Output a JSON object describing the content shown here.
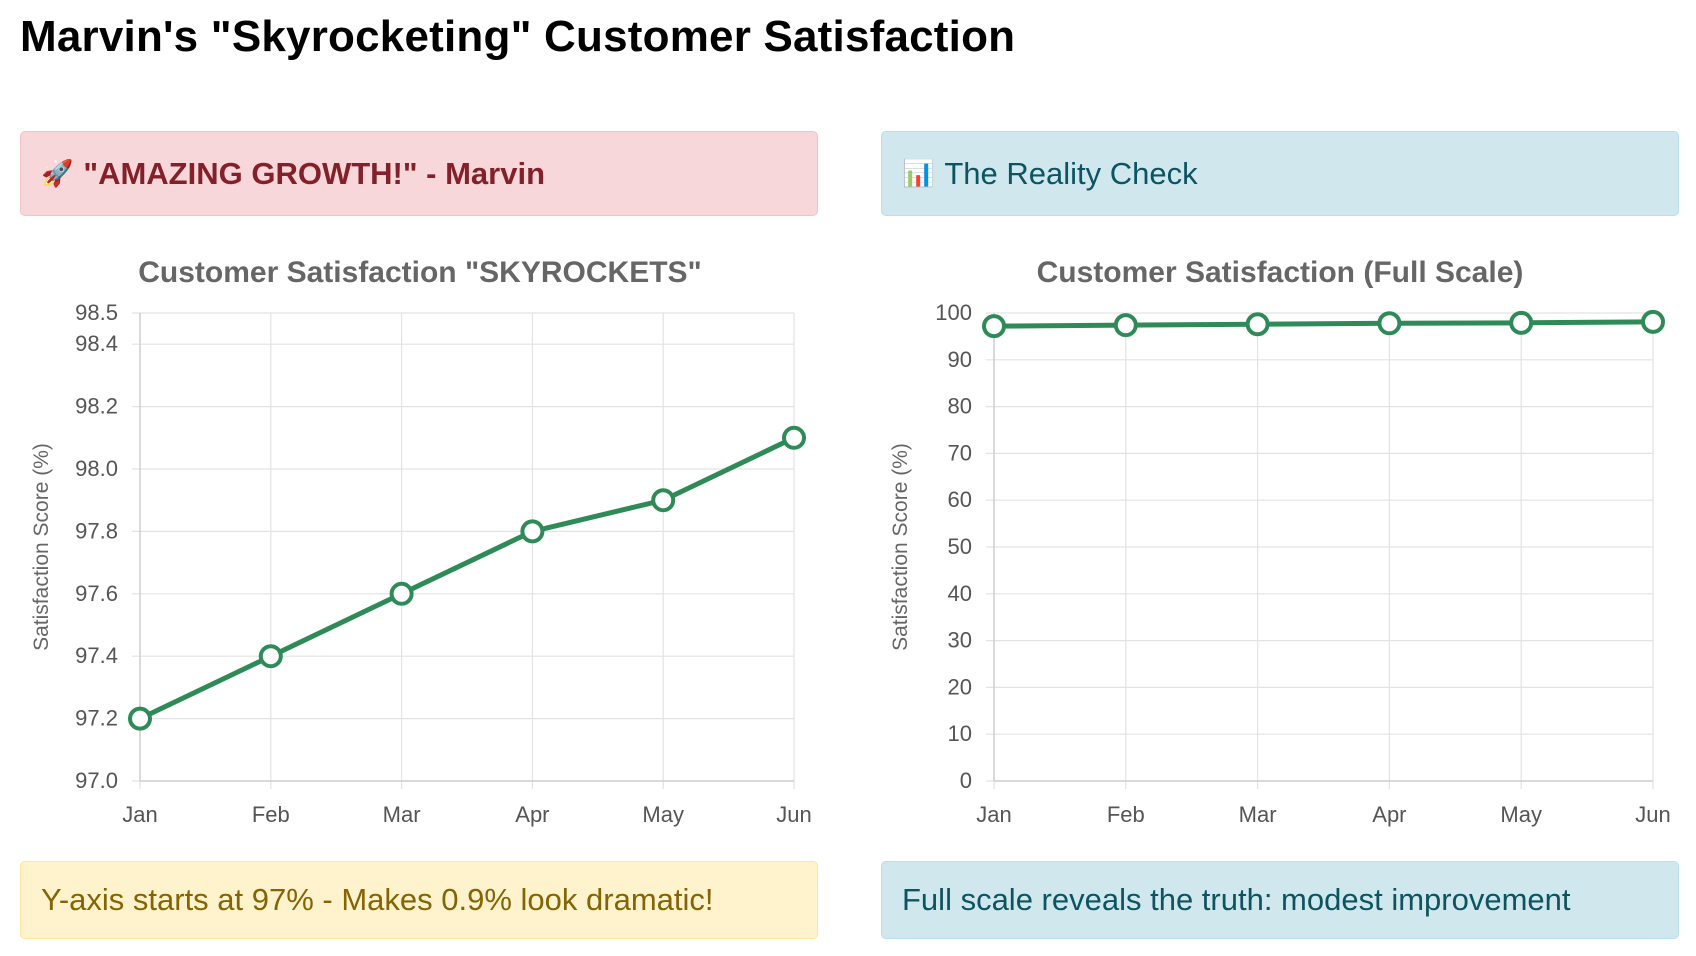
{
  "page": {
    "title": "Marvin's \"Skyrocketing\" Customer Satisfaction"
  },
  "banners": {
    "left": {
      "icon": "rocket-icon",
      "glyph": "🚀",
      "text": "\"AMAZING GROWTH!\" - Marvin"
    },
    "right": {
      "icon": "bar-chart-icon",
      "glyph": "📊",
      "text": "The Reality Check"
    }
  },
  "notes": {
    "left": "Y-axis starts at 97% - Makes 0.9% look dramatic!",
    "right": "Full scale reveals the truth: modest improvement"
  },
  "colors": {
    "line": "#2e8b57"
  },
  "chart_data": [
    {
      "id": "truncated",
      "type": "line",
      "title": "Customer Satisfaction \"SKYROCKETS\"",
      "xlabel": "",
      "ylabel": "Satisfaction Score (%)",
      "categories": [
        "Jan",
        "Feb",
        "Mar",
        "Apr",
        "May",
        "Jun"
      ],
      "series": [
        {
          "name": "Satisfaction",
          "values": [
            97.2,
            97.4,
            97.6,
            97.8,
            97.9,
            98.1
          ]
        }
      ],
      "ylim": [
        97.0,
        98.5
      ],
      "yticks": [
        "97.0",
        "97.2",
        "97.4",
        "97.6",
        "97.8",
        "98.0",
        "98.2",
        "98.4",
        "98.5"
      ],
      "grid": true
    },
    {
      "id": "full",
      "type": "line",
      "title": "Customer Satisfaction (Full Scale)",
      "xlabel": "",
      "ylabel": "Satisfaction Score (%)",
      "categories": [
        "Jan",
        "Feb",
        "Mar",
        "Apr",
        "May",
        "Jun"
      ],
      "series": [
        {
          "name": "Satisfaction",
          "values": [
            97.2,
            97.4,
            97.6,
            97.8,
            97.9,
            98.1
          ]
        }
      ],
      "ylim": [
        0,
        100
      ],
      "yticks": [
        "0",
        "10",
        "20",
        "30",
        "40",
        "50",
        "60",
        "70",
        "80",
        "90",
        "100"
      ],
      "grid": true
    }
  ]
}
